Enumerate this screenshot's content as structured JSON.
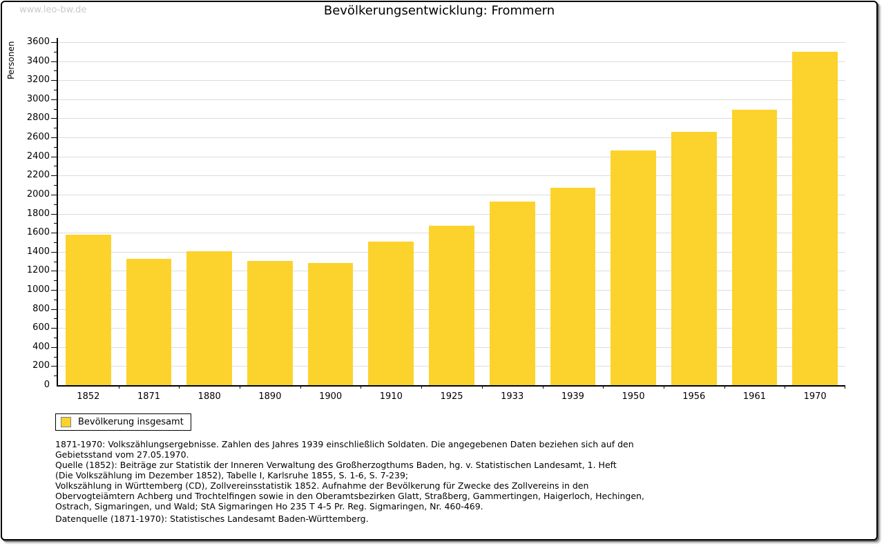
{
  "window": {
    "watermark": "www.leo-bw.de"
  },
  "title": "Bevölkerungsentwicklung: Frommern",
  "chart_data": {
    "type": "bar",
    "title": "Bevölkerungsentwicklung: Frommern",
    "xlabel": "",
    "ylabel": "Personen",
    "categories": [
      "1852",
      "1871",
      "1880",
      "1890",
      "1900",
      "1910",
      "1925",
      "1933",
      "1939",
      "1950",
      "1956",
      "1961",
      "1970"
    ],
    "values": [
      1580,
      1325,
      1405,
      1305,
      1285,
      1505,
      1675,
      1925,
      2075,
      2465,
      2660,
      2890,
      3500
    ],
    "series_name": "Bevölkerung insgesamt",
    "ylim": [
      0,
      3600
    ],
    "ytick_step": 200,
    "y_minor_tick_step": 100,
    "grid": true,
    "legend_position": "bottom-left",
    "bar_color": "#FCD32C",
    "bar_border_color": "#808080",
    "grid_color": "#DCDCDC",
    "axis_color": "#000000"
  },
  "legend": {
    "label": "Bevölkerung insgesamt"
  },
  "notes": {
    "lines": [
      "1871-1970: Volkszählungsergebnisse. Zahlen des Jahres 1939 einschließlich Soldaten. Die angegebenen Daten beziehen sich auf den",
      "Gebietsstand vom 27.05.1970.",
      "Quelle (1852): Beiträge zur Statistik der Inneren Verwaltung des Großherzogthums Baden, hg. v. Statistischen Landesamt, 1. Heft",
      "(Die Volkszählung im Dezember 1852), Tabelle I, Karlsruhe 1855, S. 1-6, S. 7-239;",
      "Volkszählung in Württemberg (CD), Zollvereinsstatistik 1852. Aufnahme der Bevölkerung für Zwecke des Zollvereins in den",
      "Obervogteiämtern Achberg und Trochtelfingen sowie in den Oberamtsbezirken Glatt, Straßberg, Gammertingen, Haigerloch, Hechingen,",
      "Ostrach, Sigmaringen, und Wald; StA Sigmaringen Ho 235 T 4-5 Pr. Reg. Sigmaringen, Nr. 460-469."
    ],
    "datasource": "Datenquelle (1871-1970): Statistisches Landesamt Baden-Württemberg."
  }
}
